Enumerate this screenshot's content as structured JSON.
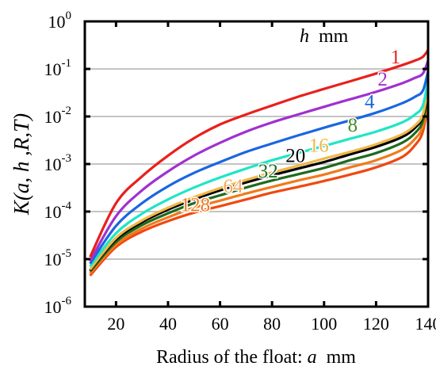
{
  "chart_data": {
    "type": "line",
    "xlabel_text": "Radius of the float: ",
    "xlabel_var": "a",
    "xlabel_unit": "  mm",
    "ylabel": "K(a, h ,R,T)",
    "xlim": [
      8,
      140
    ],
    "ylim": [
      1e-06,
      1
    ],
    "y_scale": "log",
    "x_ticks": [
      "20",
      "40",
      "60",
      "80",
      "100",
      "120",
      "140"
    ],
    "y_ticks": [
      {
        "base": "10",
        "exp": "0"
      },
      {
        "base": "10",
        "exp": "-1"
      },
      {
        "base": "10",
        "exp": "-2"
      },
      {
        "base": "10",
        "exp": "-3"
      },
      {
        "base": "10",
        "exp": "-4"
      },
      {
        "base": "10",
        "exp": "-5"
      },
      {
        "base": "10",
        "exp": "-6"
      }
    ],
    "grid": "horizontal",
    "legend_title_var": "h",
    "legend_title_unit": "  mm",
    "legend_placement": "top-right",
    "x": [
      10,
      20,
      30,
      40,
      50,
      60,
      70,
      80,
      90,
      100,
      110,
      120,
      130,
      135,
      138,
      140
    ],
    "series": [
      {
        "name": "1",
        "color": "#e8201c",
        "values": [
          1.1e-05,
          0.00015,
          0.00055,
          0.0015,
          0.0035,
          0.0068,
          0.011,
          0.017,
          0.026,
          0.038,
          0.055,
          0.08,
          0.12,
          0.15,
          0.18,
          0.25
        ]
      },
      {
        "name": "2",
        "color": "#a030d0",
        "values": [
          9e-06,
          8e-05,
          0.00028,
          0.0007,
          0.0015,
          0.0028,
          0.0048,
          0.0075,
          0.011,
          0.016,
          0.023,
          0.033,
          0.05,
          0.065,
          0.08,
          0.15
        ]
      },
      {
        "name": "4",
        "color": "#1a66e0",
        "values": [
          8e-06,
          5e-05,
          0.00015,
          0.00034,
          0.00065,
          0.0011,
          0.0018,
          0.0027,
          0.004,
          0.0058,
          0.0083,
          0.012,
          0.019,
          0.026,
          0.035,
          0.09
        ]
      },
      {
        "name": "8",
        "color": "#1ee6c6",
        "values": [
          7e-06,
          3.5e-05,
          9e-05,
          0.00018,
          0.00032,
          0.00052,
          0.0008,
          0.0012,
          0.0017,
          0.0024,
          0.0034,
          0.0048,
          0.0075,
          0.011,
          0.017,
          0.06
        ]
      },
      {
        "name": "16",
        "color": "#f0b848",
        "values": [
          6e-06,
          2.8e-05,
          6.5e-05,
          0.00012,
          0.0002,
          0.00031,
          0.00046,
          0.00066,
          0.00092,
          0.0013,
          0.0018,
          0.0026,
          0.0042,
          0.0065,
          0.011,
          0.04
        ]
      },
      {
        "name": "20",
        "color": "#000000",
        "values": [
          5.8e-06,
          2.6e-05,
          6e-05,
          0.00011,
          0.00018,
          0.00028,
          0.00041,
          0.00058,
          0.0008,
          0.0011,
          0.0016,
          0.0023,
          0.0037,
          0.0058,
          0.01,
          0.035
        ]
      },
      {
        "name": "32",
        "color": "#1e6b1e",
        "values": [
          5.5e-06,
          2.3e-05,
          5.2e-05,
          9.2e-05,
          0.00015,
          0.00022,
          0.00032,
          0.00045,
          0.00061,
          0.00083,
          0.0012,
          0.0017,
          0.0028,
          0.0045,
          0.008,
          0.03
        ]
      },
      {
        "name": "64",
        "color": "#f07a1a",
        "values": [
          5e-06,
          2e-05,
          4.4e-05,
          7.6e-05,
          0.00012,
          0.00017,
          0.00024,
          0.00033,
          0.00045,
          0.0006,
          0.00085,
          0.0012,
          0.002,
          0.0034,
          0.0062,
          0.025
        ]
      },
      {
        "name": "128",
        "color": "#f04810",
        "values": [
          4.5e-06,
          1.8e-05,
          3.8e-05,
          6.3e-05,
          9.5e-05,
          0.00013,
          0.00018,
          0.00025,
          0.00033,
          0.00044,
          0.0006,
          0.00085,
          0.0014,
          0.0025,
          0.0048,
          0.02
        ]
      }
    ],
    "series_labels": [
      {
        "name": "1",
        "color": "#e8201c",
        "x": 127.5,
        "y": 0.13
      },
      {
        "name": "2",
        "color": "#a030d0",
        "x": 122.5,
        "y": 0.045
      },
      {
        "name": "4",
        "color": "#1a66e0",
        "x": 117.5,
        "y": 0.015
      },
      {
        "name": "8",
        "color": "#4a8a2a",
        "x": 111,
        "y": 0.0048
      },
      {
        "name": "16",
        "color": "#f0b848",
        "x": 98,
        "y": 0.0018
      },
      {
        "name": "20",
        "color": "#000000",
        "x": 89,
        "y": 0.0011
      },
      {
        "name": "32",
        "color": "#1e6b1e",
        "x": 78.5,
        "y": 0.00052
      },
      {
        "name": "64",
        "color": "#f0a860",
        "x": 65,
        "y": 0.00025
      },
      {
        "name": "128",
        "color": "#f07a1a",
        "x": 50.5,
        "y": 0.000102
      }
    ]
  }
}
